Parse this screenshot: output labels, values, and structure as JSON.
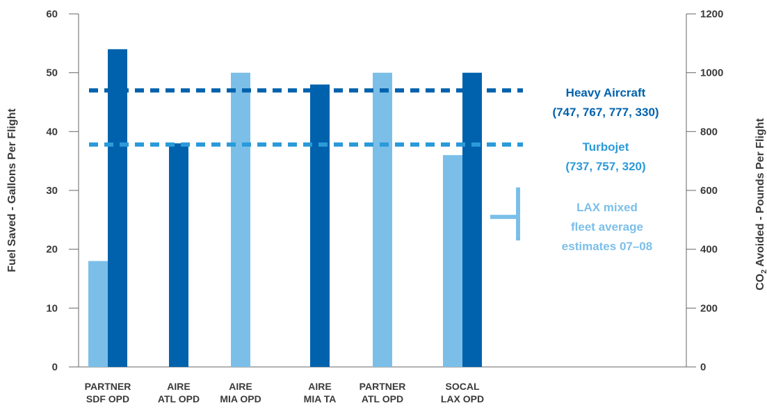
{
  "chart_data": {
    "type": "bar",
    "categories": [
      [
        "PARTNER",
        "SDF OPD"
      ],
      [
        "AIRE",
        "ATL OPD"
      ],
      [
        "AIRE",
        "MIA OPD"
      ],
      [
        "AIRE",
        "MIA TA"
      ],
      [
        "PARTNER",
        "ATL OPD"
      ],
      [
        "SOCAL",
        "LAX OPD"
      ]
    ],
    "series": [
      {
        "values": [
          18,
          null,
          50,
          null,
          50,
          36
        ],
        "color": "#7bbfe9"
      },
      {
        "values": [
          54,
          38,
          null,
          48,
          null,
          50
        ],
        "color": "#0062ad"
      }
    ],
    "ylabel": "Fuel Saved - Gallons Per Flight",
    "ylim": [
      0,
      60
    ],
    "yticks": [
      0,
      10,
      20,
      30,
      40,
      50,
      60
    ],
    "y2label_parts": [
      "CO",
      "2",
      " Avoided - Pounds Per Flight"
    ],
    "y2lim": [
      0,
      1200
    ],
    "y2ticks": [
      0,
      200,
      400,
      600,
      800,
      1000,
      1200
    ],
    "reference_lines": [
      {
        "value": 47,
        "color": "#0062ad",
        "label": [
          "Heavy Aircraft",
          "(747, 767, 777, 330)"
        ]
      },
      {
        "value": 37.8,
        "color": "#2b9ad9",
        "label": [
          "Turbojet",
          "(737, 757, 320)"
        ]
      }
    ],
    "range_annotation": {
      "low": 21.5,
      "high": 30.5,
      "mid": 25.5,
      "color": "#7bbfe9",
      "label": [
        "LAX mixed",
        "fleet average",
        "estimates 07–08"
      ]
    },
    "grid": false
  }
}
